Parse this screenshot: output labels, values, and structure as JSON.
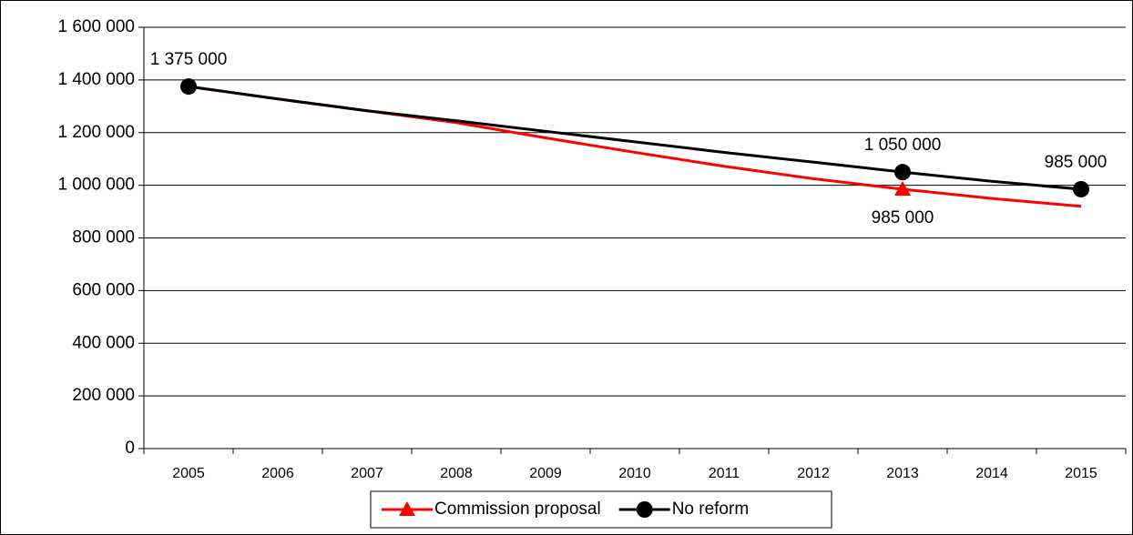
{
  "chart_data": {
    "type": "line",
    "categories": [
      "2005",
      "2006",
      "2007",
      "2008",
      "2009",
      "2010",
      "2011",
      "2012",
      "2013",
      "2014",
      "2015"
    ],
    "series": [
      {
        "name": "Commission proposal",
        "color": "#ff0000",
        "marker": "triangle",
        "values": [
          1375000,
          1328000,
          1283000,
          1238000,
          1180000,
          1125000,
          1072000,
          1025000,
          985000,
          950000,
          920000
        ],
        "value_labels": [
          null,
          null,
          null,
          null,
          null,
          null,
          null,
          null,
          "985 000",
          null,
          null
        ]
      },
      {
        "name": "No reform",
        "color": "#000000",
        "marker": "circle",
        "values": [
          1375000,
          1328000,
          1283000,
          1245000,
          1205000,
          1165000,
          1125000,
          1088000,
          1050000,
          1015000,
          985000
        ],
        "value_labels": [
          "1 375 000",
          null,
          null,
          null,
          null,
          null,
          null,
          null,
          "1 050 000",
          null,
          "985 000"
        ]
      }
    ],
    "ylim": [
      0,
      1600000
    ],
    "yticks": [
      0,
      {
        "value": 200000,
        "label": "200 000"
      },
      {
        "value": 400000,
        "label": "400 000"
      },
      {
        "value": 600000,
        "label": "600 000"
      },
      {
        "value": 800000,
        "label": "800 000"
      },
      {
        "value": 1000000,
        "label": "1 000 000"
      },
      {
        "value": 1200000,
        "label": "1 200 000"
      },
      {
        "value": 1400000,
        "label": "1 400 000"
      },
      {
        "value": 1600000,
        "label": "1 600 000"
      }
    ],
    "grid": true,
    "legend": "bottom"
  }
}
